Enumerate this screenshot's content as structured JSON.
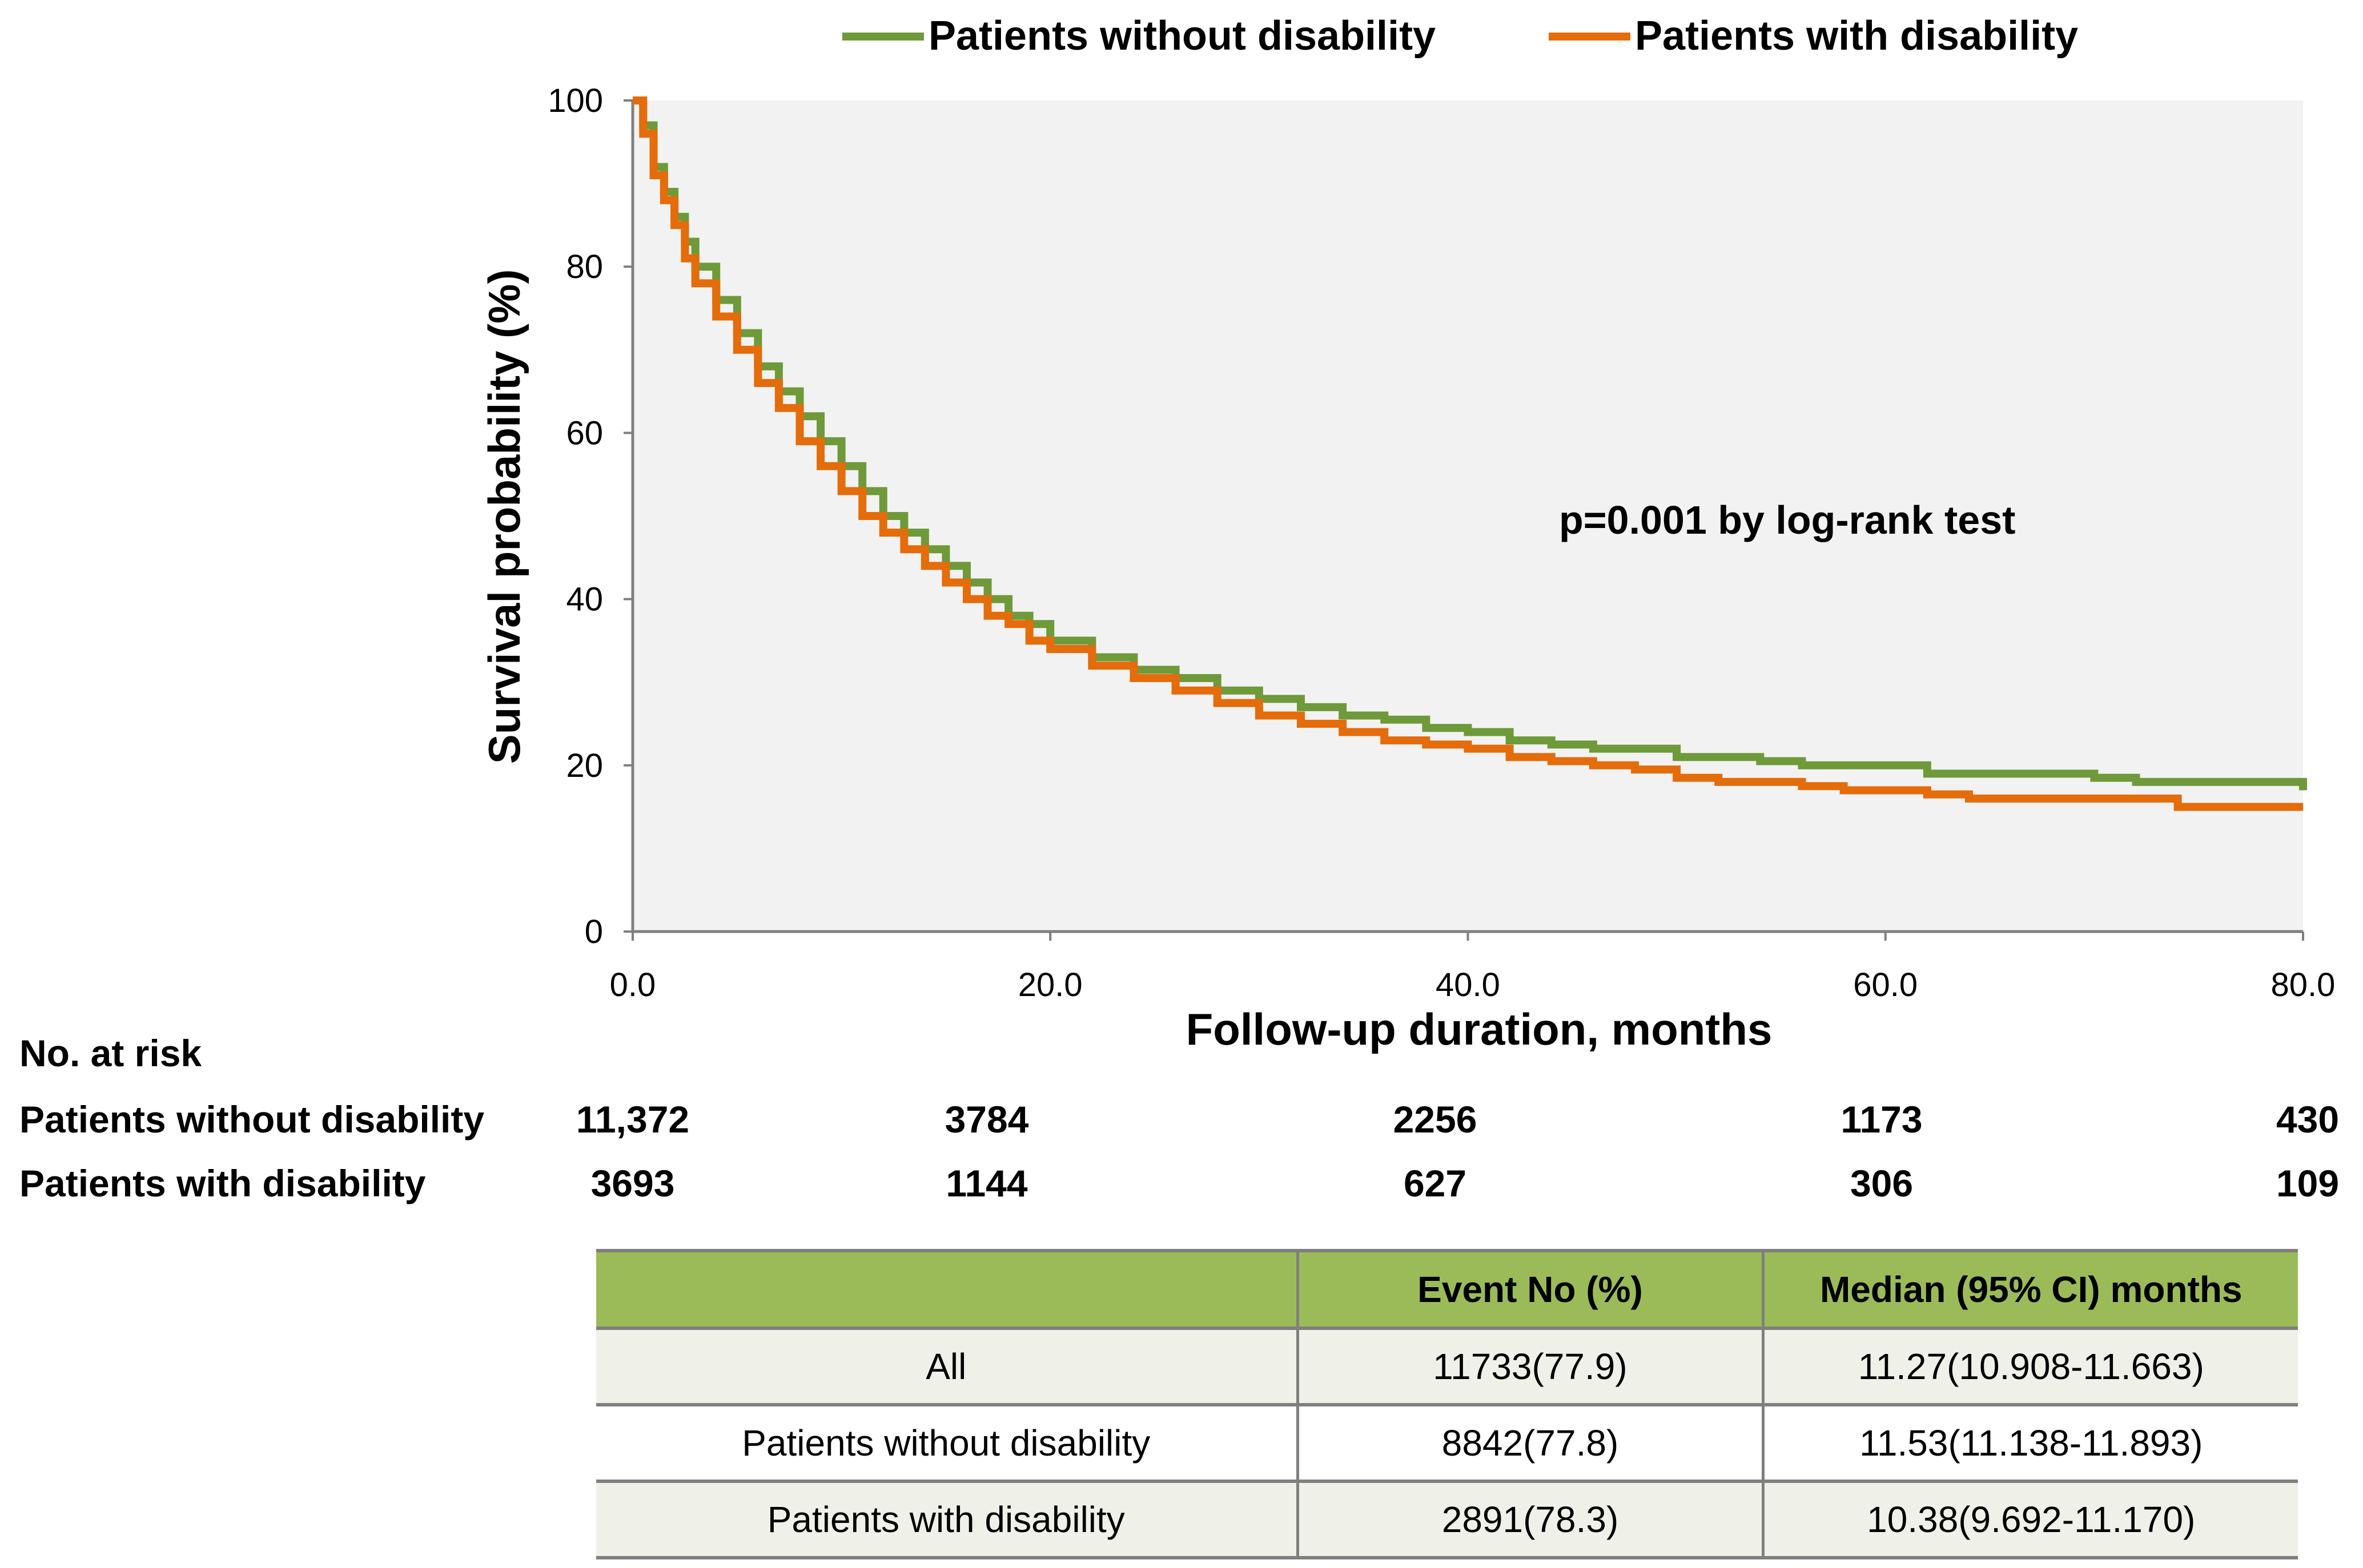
{
  "chart_data": {
    "type": "line",
    "subtype": "kaplan-meier step",
    "title": "",
    "xlabel": "Follow-up duration, months",
    "ylabel": "Survival probability (%)",
    "xlim": [
      0,
      80
    ],
    "ylim": [
      0,
      100
    ],
    "x_ticks": [
      "0.0",
      "20.0",
      "40.0",
      "60.0",
      "80.0"
    ],
    "x_tick_values": [
      0,
      20,
      40,
      60,
      80
    ],
    "y_ticks": [
      "0",
      "20",
      "40",
      "60",
      "80",
      "100"
    ],
    "y_tick_values": [
      0,
      20,
      40,
      60,
      80,
      100
    ],
    "annotation": "p=0.001 by log-rank test",
    "legend_position": "top",
    "series": [
      {
        "name": "Patients without disability",
        "color": "#6e9a3a",
        "x": [
          0,
          0.5,
          1,
          1.5,
          2,
          2.5,
          3,
          4,
          5,
          6,
          7,
          8,
          9,
          10,
          11,
          12,
          13,
          14,
          15,
          16,
          17,
          18,
          19,
          20,
          22,
          24,
          26,
          28,
          30,
          32,
          34,
          36,
          38,
          40,
          42,
          44,
          46,
          48,
          50,
          52,
          54,
          56,
          58,
          60,
          62,
          64,
          66,
          68,
          70,
          72,
          74,
          76,
          78,
          79.8,
          80
        ],
        "values": [
          100,
          97,
          92,
          89,
          86,
          83,
          80,
          76,
          72,
          68,
          65,
          62,
          59,
          56,
          53,
          50,
          48,
          46,
          44,
          42,
          40,
          38,
          37,
          35,
          33,
          31.5,
          30.5,
          29,
          28,
          27,
          26,
          25.5,
          24.5,
          24,
          23,
          22.5,
          22,
          22,
          21,
          21,
          20.5,
          20,
          20,
          20,
          19,
          19,
          19,
          19,
          18.5,
          18,
          18,
          18,
          18,
          18,
          17
        ]
      },
      {
        "name": "Patients with disability",
        "color": "#e46c0a",
        "x": [
          0,
          0.5,
          1,
          1.5,
          2,
          2.5,
          3,
          4,
          5,
          6,
          7,
          8,
          9,
          10,
          11,
          12,
          13,
          14,
          15,
          16,
          17,
          18,
          19,
          20,
          22,
          24,
          26,
          28,
          30,
          32,
          34,
          36,
          38,
          40,
          42,
          44,
          46,
          48,
          50,
          52,
          54,
          56,
          58,
          60,
          62,
          64,
          66,
          68,
          70,
          72,
          74,
          76,
          78,
          80
        ],
        "values": [
          100,
          96,
          91,
          88,
          85,
          81,
          78,
          74,
          70,
          66,
          63,
          59,
          56,
          53,
          50,
          48,
          46,
          44,
          42,
          40,
          38,
          37,
          35,
          34,
          32,
          30.5,
          29,
          27.5,
          26,
          25,
          24,
          23,
          22.5,
          22,
          21,
          20.5,
          20,
          19.5,
          18.5,
          18,
          18,
          17.5,
          17,
          17,
          16.5,
          16,
          16,
          16,
          16,
          16,
          15,
          15,
          15,
          15
        ]
      }
    ]
  },
  "risk_table": {
    "title": "No. at risk",
    "rows": [
      {
        "label": "Patients without disability",
        "values": [
          "11,372",
          "3784",
          "2256",
          "1173",
          "430"
        ]
      },
      {
        "label": "Patients with disability",
        "values": [
          "3693",
          "1144",
          "627",
          "306",
          "109"
        ]
      }
    ]
  },
  "summary_table": {
    "headers": [
      "",
      "Event No (%)",
      "Median (95% CI) months"
    ],
    "rows": [
      [
        "All",
        "11733(77.9)",
        "11.27(10.908-11.663)"
      ],
      [
        "Patients without disability",
        "8842(77.8)",
        "11.53(11.138-11.893)"
      ],
      [
        "Patients with disability",
        "2891(78.3)",
        "10.38(9.692-11.170)"
      ]
    ]
  }
}
